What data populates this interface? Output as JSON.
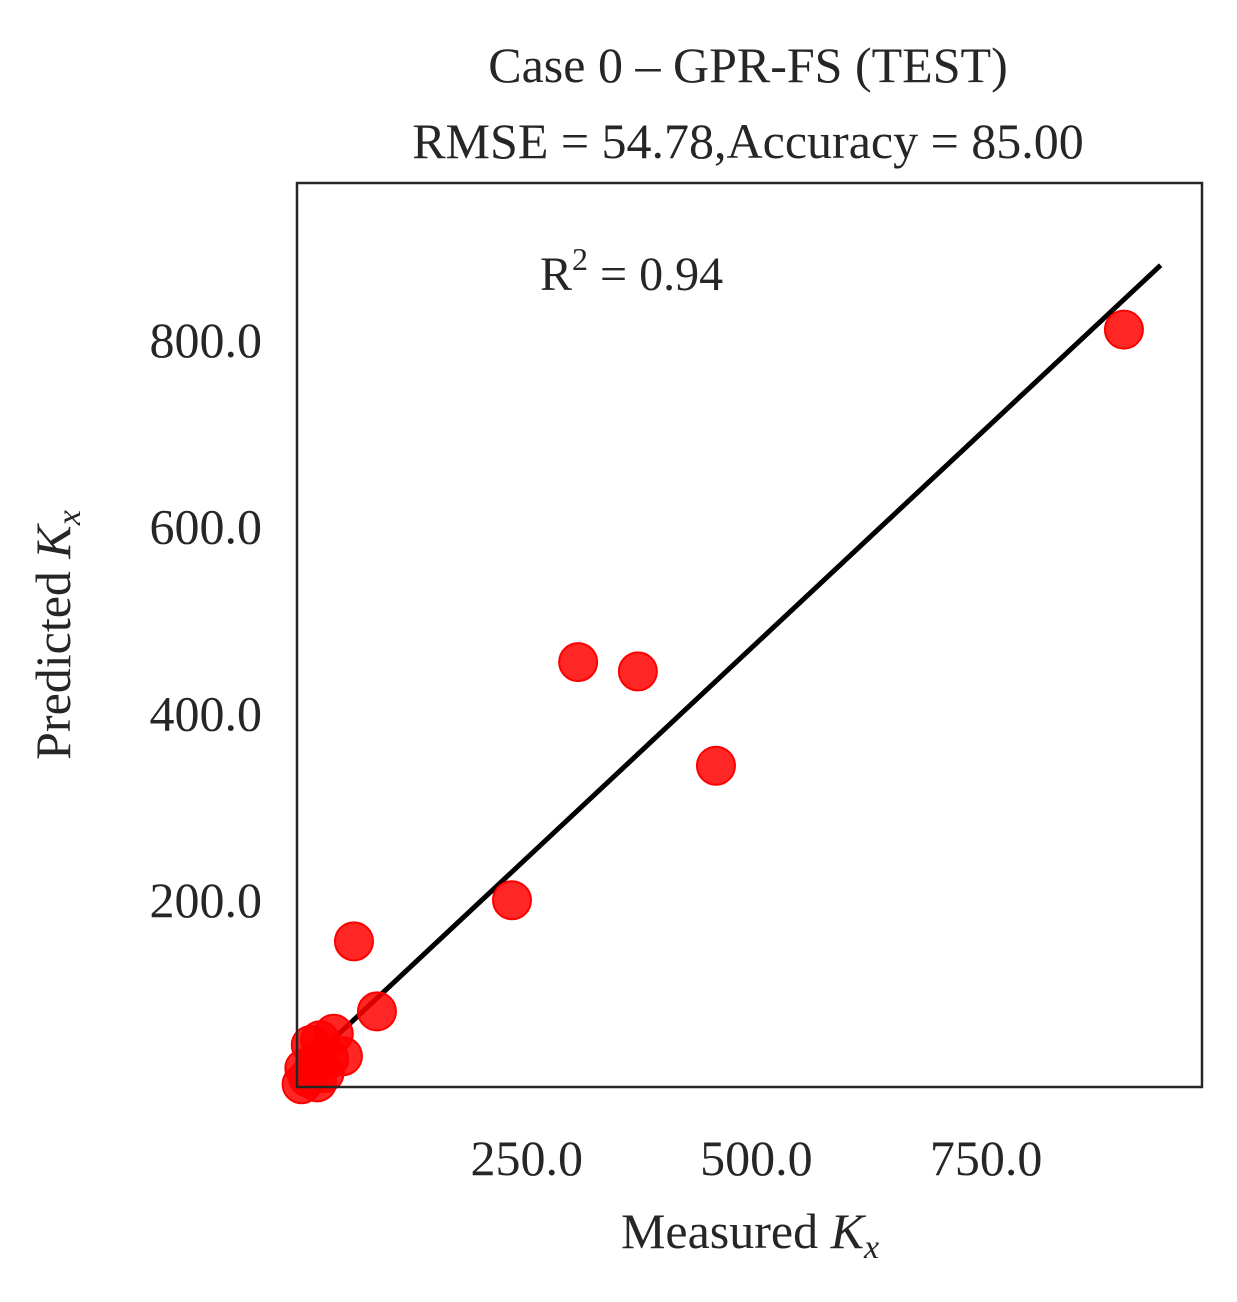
{
  "chart_data": {
    "type": "scatter",
    "title_line1": "Case 0 – GPR-FS (TEST)",
    "title_line2": "RMSE = 54.78,Accuracy = 85.00",
    "xlabel_prefix": "Measured",
    "ylabel_prefix": "Predicted",
    "axis_var": "K",
    "axis_var_sub": "x",
    "annotation_prefix": "R",
    "annotation_sup": "2",
    "annotation_value": " = 0.94",
    "xlim": [
      0,
      985
    ],
    "ylim": [
      0,
      968
    ],
    "xticks": [
      250,
      500,
      750
    ],
    "xtick_labels": [
      "250.0",
      "500.0",
      "750.0"
    ],
    "yticks": [
      200,
      400,
      600,
      800
    ],
    "ytick_labels": [
      "200.0",
      "400.0",
      "600.0",
      "800.0"
    ],
    "grid": false,
    "point_color": "#ff0000",
    "line_color": "#000000",
    "fit_line": {
      "x": [
        0,
        940
      ],
      "y": [
        15,
        880
      ]
    },
    "points": [
      {
        "x": 306,
        "y": 455
      },
      {
        "x": 371,
        "y": 445
      },
      {
        "x": 456,
        "y": 344
      },
      {
        "x": 234,
        "y": 200
      },
      {
        "x": 62,
        "y": 156
      },
      {
        "x": 87,
        "y": 81
      },
      {
        "x": 900,
        "y": 811
      },
      {
        "x": 40,
        "y": 57
      },
      {
        "x": 25,
        "y": 50
      },
      {
        "x": 15,
        "y": 45
      },
      {
        "x": 50,
        "y": 33
      },
      {
        "x": 35,
        "y": 30
      },
      {
        "x": 20,
        "y": 27
      },
      {
        "x": 8,
        "y": 20
      },
      {
        "x": 30,
        "y": 15
      },
      {
        "x": 12,
        "y": 10
      },
      {
        "x": 22,
        "y": 5
      },
      {
        "x": 5,
        "y": 3
      }
    ]
  }
}
